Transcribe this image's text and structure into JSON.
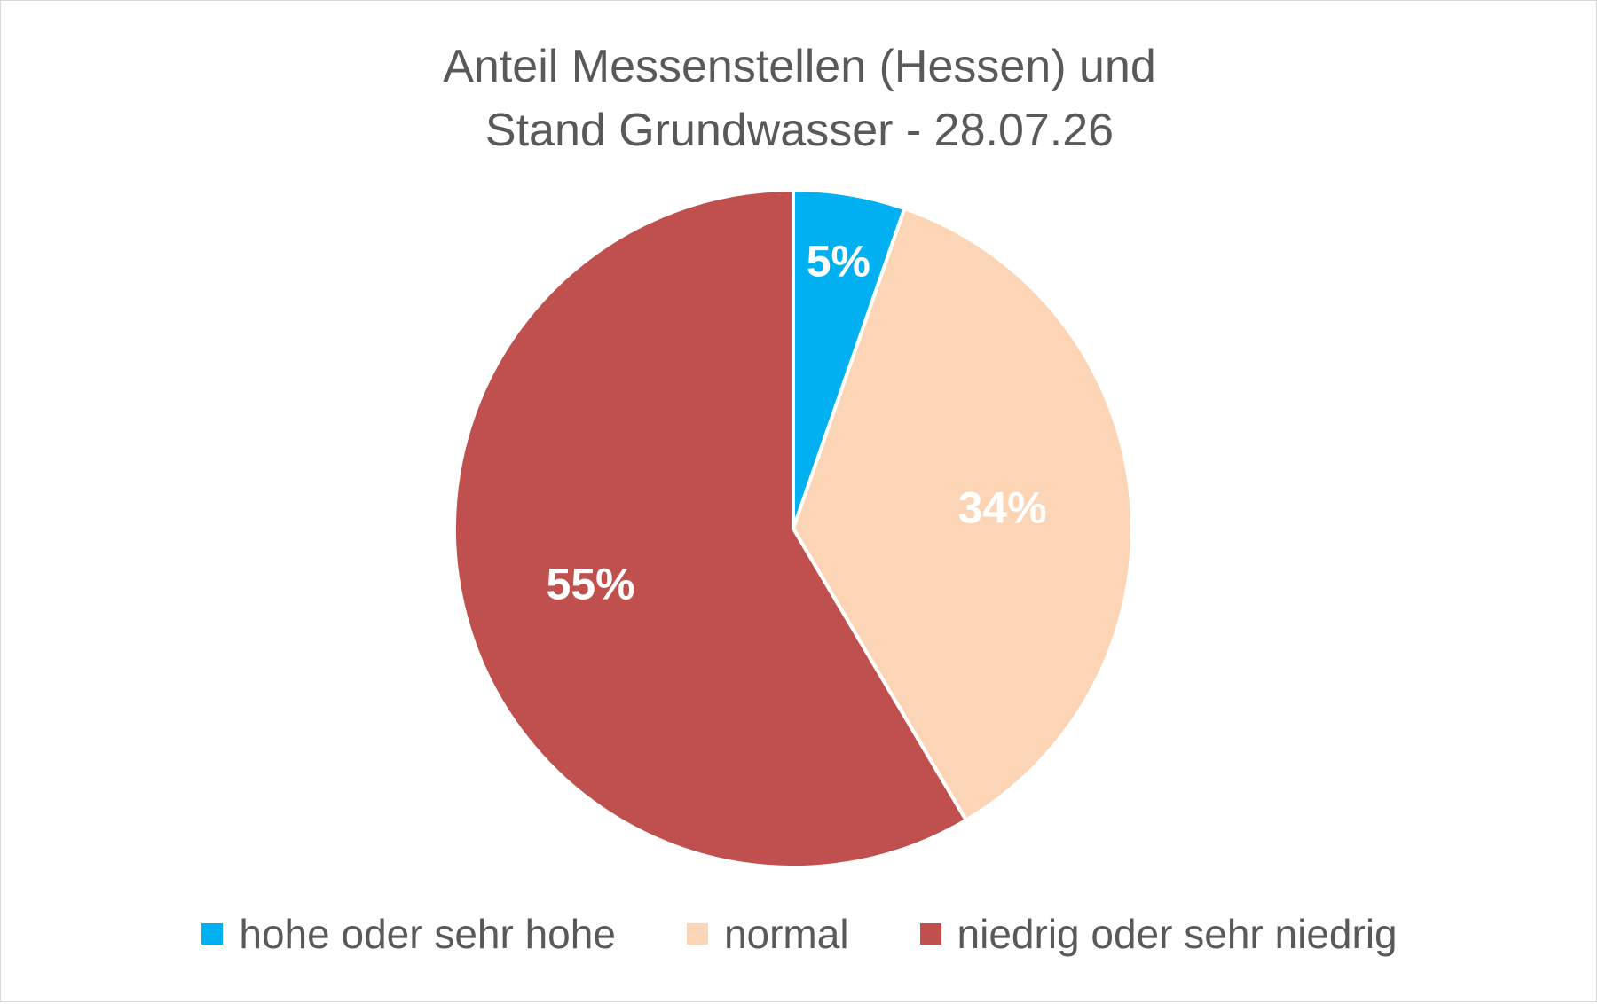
{
  "chart_data": {
    "type": "pie",
    "title": "Anteil Messenstellen (Hessen) und Stand Grundwasser - 28.07.26",
    "title_lines": [
      "Anteil Messenstellen (Hessen) und",
      "Stand Grundwasser - 28.07.26"
    ],
    "categories": [
      "hohe oder sehr hohe",
      "normal",
      "niedrig oder sehr niedrig"
    ],
    "values": [
      5,
      34,
      55
    ],
    "labels": [
      "5%",
      "34%",
      "55%"
    ],
    "colors": [
      "#00b0f0",
      "#fbd5b5",
      "#c0504d"
    ],
    "slice_border_color": "#ffffff",
    "data_label_color": "#ffffff",
    "legend_position": "bottom"
  }
}
